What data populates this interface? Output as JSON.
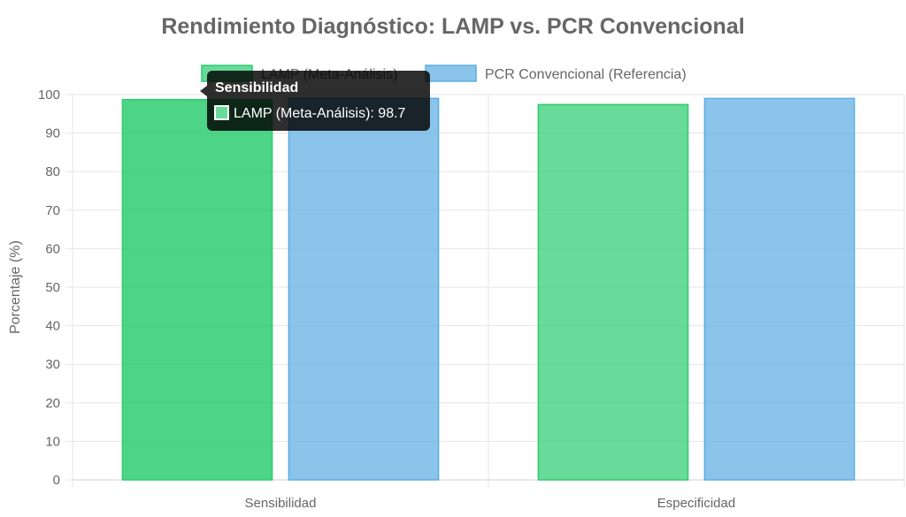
{
  "chart_data": {
    "type": "bar",
    "title": "Rendimiento Diagnóstico: LAMP vs. PCR Convencional",
    "categories": [
      "Sensibilidad",
      "Especificidad"
    ],
    "series": [
      {
        "name": "LAMP (Meta-Análisis)",
        "values": [
          98.7,
          97.4
        ],
        "color": "#2ecc71"
      },
      {
        "name": "PCR Convencional (Referencia)",
        "values": [
          99.0,
          99.0
        ],
        "color": "#5dade2"
      }
    ],
    "ylabel": "Porcentaje (%)",
    "xlabel": "",
    "ylim": [
      0,
      100
    ],
    "yticks": [
      0,
      10,
      20,
      30,
      40,
      50,
      60,
      70,
      80,
      90,
      100
    ],
    "grid": true,
    "legend_position": "top",
    "tooltip": {
      "title": "Sensibilidad",
      "label": "LAMP (Meta-Análisis): 98.7",
      "series_color": "#2ecc71"
    }
  }
}
